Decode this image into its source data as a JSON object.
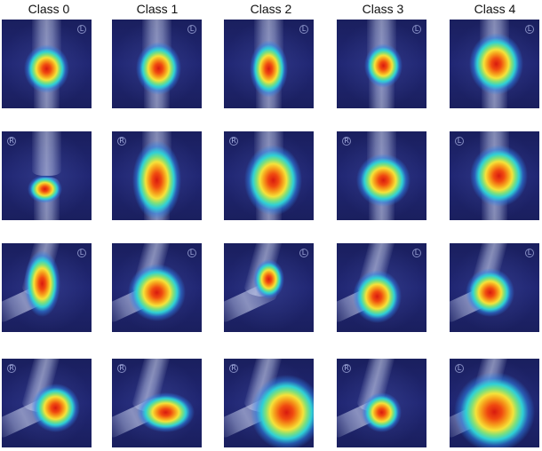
{
  "columns": [
    "Class 0",
    "Class 1",
    "Class 2",
    "Class 3",
    "Class 4"
  ],
  "rows": [
    [
      "Class 0 heatmap row 1",
      "Class 1 heatmap row 1",
      "Class 2 heatmap row 1",
      "Class 3 heatmap row 1",
      "Class 4 heatmap row 1"
    ],
    [
      "Class 0 heatmap row 2",
      "Class 1 heatmap row 2",
      "Class 2 heatmap row 2",
      "Class 3 heatmap row 2",
      "Class 4 heatmap row 2"
    ],
    [
      "Class 0 heatmap row 3",
      "Class 1 heatmap row 3",
      "Class 2 heatmap row 3",
      "Class 3 heatmap row 3",
      "Class 4 heatmap row 3"
    ],
    [
      "Class 0 heatmap row 4",
      "Class 1 heatmap row 4",
      "Class 2 heatmap row 4",
      "Class 3 heatmap row 4",
      "Class 4 heatmap row 4"
    ]
  ],
  "markers": {
    "r0": [
      "L",
      "L",
      "L",
      "L",
      "L"
    ],
    "r1": [
      "R",
      "R",
      "R",
      "R",
      "L"
    ],
    "r2": [
      "L",
      "L",
      "L",
      "L",
      "L"
    ],
    "r3": [
      "R",
      "R",
      "R",
      "R",
      "L"
    ]
  },
  "colors": {
    "background": "#1b2060",
    "heat_hot": "#d81a0f",
    "heat_warm": "#f5e23a",
    "heat_cool": "#2fd0d6"
  }
}
